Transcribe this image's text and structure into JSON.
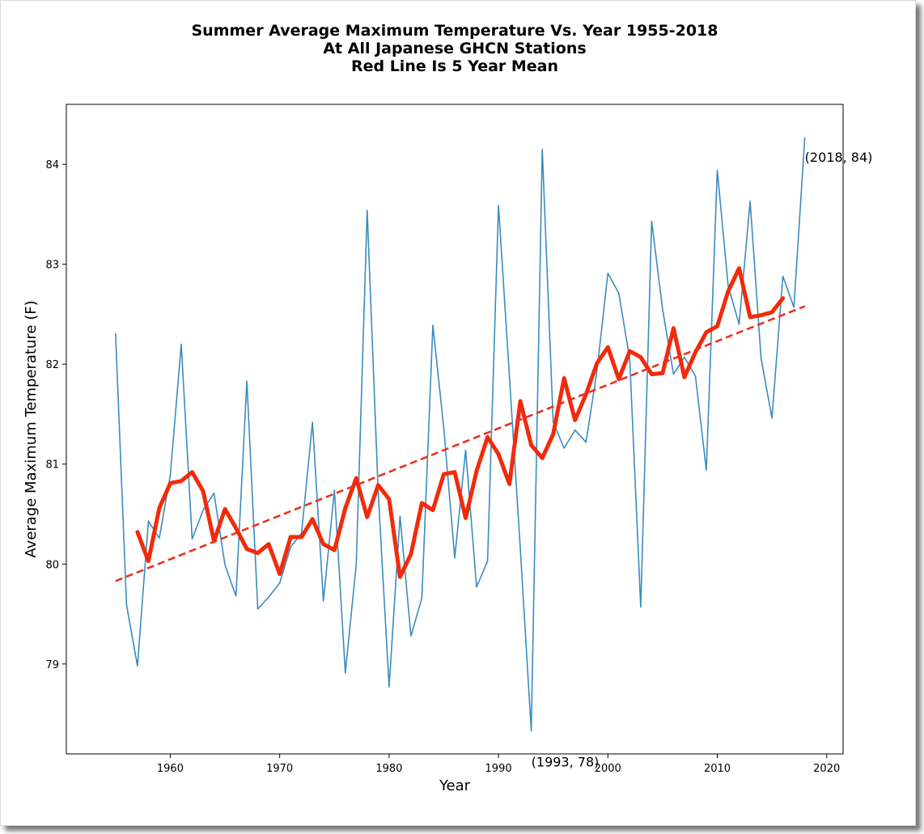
{
  "chart_data": {
    "type": "line",
    "title": [
      "Summer Average Maximum Temperature Vs. Year 1955-2018",
      "At All Japanese GHCN Stations",
      "Red Line Is 5 Year Mean"
    ],
    "xlabel": "Year",
    "ylabel": "Average Maximum Temperature (F)",
    "xlim": [
      1950.5,
      2021.5
    ],
    "ylim": [
      78.1,
      84.6
    ],
    "xticks": [
      1960,
      1970,
      1980,
      1990,
      2000,
      2010,
      2020
    ],
    "yticks": [
      79,
      80,
      81,
      82,
      83,
      84
    ],
    "colors": {
      "raw": "#3a8bbf",
      "mean": "#f22a0c",
      "trend": "#e8321e"
    },
    "series": [
      {
        "x": [
          1955,
          1956,
          1957,
          1958,
          1959,
          1960,
          1961,
          1962,
          1963,
          1964,
          1965,
          1966,
          1967,
          1968,
          1969,
          1970,
          1971,
          1972,
          1973,
          1974,
          1975,
          1976,
          1977,
          1978,
          1979,
          1980,
          1981,
          1982,
          1983,
          1984,
          1985,
          1986,
          1987,
          1988,
          1989,
          1990,
          1991,
          1992,
          1993,
          1994,
          1995,
          1996,
          1997,
          1998,
          1999,
          2000,
          2001,
          2002,
          2003,
          2004,
          2005,
          2006,
          2007,
          2008,
          2009,
          2010,
          2011,
          2012,
          2013,
          2014,
          2015,
          2016,
          2017,
          2018
        ],
        "values": [
          82.31,
          79.59,
          78.98,
          80.43,
          80.26,
          80.89,
          82.2,
          80.25,
          80.54,
          80.71,
          79.99,
          79.68,
          81.83,
          79.55,
          79.67,
          79.81,
          80.17,
          80.31,
          81.42,
          79.63,
          80.74,
          78.91,
          80.0,
          83.54,
          80.72,
          78.77,
          80.48,
          79.28,
          79.66,
          82.39,
          81.36,
          80.06,
          81.14,
          79.77,
          80.03,
          83.59,
          81.88,
          80.15,
          78.33,
          84.15,
          81.42,
          81.16,
          81.34,
          81.22,
          81.93,
          82.91,
          82.71,
          82.05,
          79.57,
          83.43,
          82.55,
          81.9,
          82.07,
          81.88,
          80.94,
          83.94,
          82.78,
          82.4,
          83.63,
          82.06,
          81.46,
          82.88,
          82.57,
          84.27
        ]
      },
      {
        "x": [
          1957,
          1958,
          1959,
          1960,
          1961,
          1962,
          1963,
          1964,
          1965,
          1966,
          1967,
          1968,
          1969,
          1970,
          1971,
          1972,
          1973,
          1974,
          1975,
          1976,
          1977,
          1978,
          1979,
          1980,
          1981,
          1982,
          1983,
          1984,
          1985,
          1986,
          1987,
          1988,
          1989,
          1990,
          1991,
          1992,
          1993,
          1994,
          1995,
          1996,
          1997,
          1998,
          1999,
          2000,
          2001,
          2002,
          2003,
          2004,
          2005,
          2006,
          2007,
          2008,
          2009,
          2010,
          2011,
          2012,
          2013,
          2014,
          2015,
          2016
        ],
        "values": [
          80.32,
          80.03,
          80.56,
          80.81,
          80.83,
          80.92,
          80.73,
          80.23,
          80.55,
          80.36,
          80.15,
          80.11,
          80.2,
          79.9,
          80.27,
          80.27,
          80.45,
          80.2,
          80.14,
          80.56,
          80.86,
          80.47,
          80.79,
          80.65,
          79.87,
          80.1,
          80.61,
          80.54,
          80.9,
          80.92,
          80.46,
          80.93,
          81.27,
          81.1,
          80.8,
          81.63,
          81.19,
          81.06,
          81.3,
          81.86,
          81.44,
          81.7,
          82.01,
          82.17,
          81.85,
          82.13,
          82.07,
          81.9,
          81.91,
          82.36,
          81.87,
          82.12,
          82.32,
          82.38,
          82.73,
          82.96,
          82.47,
          82.49,
          82.52,
          82.66
        ]
      },
      {
        "x": [
          1955,
          2018
        ],
        "values": [
          79.83,
          82.58
        ]
      }
    ],
    "annotations": [
      {
        "x": 2018,
        "y": 84,
        "label": "(2018, 84)"
      },
      {
        "x": 1993,
        "y": 78,
        "label": "(1993, 78)"
      }
    ]
  }
}
